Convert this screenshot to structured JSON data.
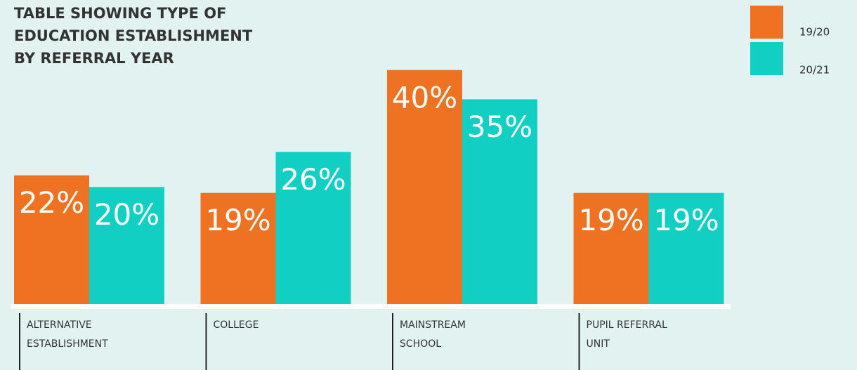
{
  "chart_data": {
    "type": "bar",
    "title": [
      "TABLE SHOWING TYPE OF",
      "EDUCATION ESTABLISHMENT",
      "BY REFERRAL YEAR"
    ],
    "categories": [
      [
        "ALTERNATIVE",
        "ESTABLISHMENT"
      ],
      [
        "COLLEGE"
      ],
      [
        "MAINSTREAM",
        "SCHOOL"
      ],
      [
        "PUPIL REFERRAL",
        "UNIT"
      ]
    ],
    "series": [
      {
        "name": "19/20",
        "color": "#ef7223",
        "values": [
          22,
          19,
          40,
          19
        ],
        "value_labels": [
          "22%",
          "19%",
          "40%",
          "19%"
        ]
      },
      {
        "name": "20/21",
        "color": "#12cfc3",
        "values": [
          20,
          26,
          35,
          19
        ],
        "value_labels": [
          "20%",
          "26%",
          "35%",
          "19%"
        ]
      }
    ],
    "legend": "top-right"
  }
}
